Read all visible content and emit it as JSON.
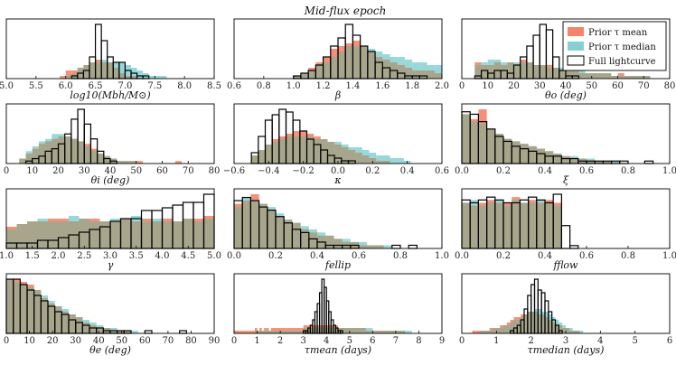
{
  "title": "Mid-flux epoch",
  "colors": {
    "mean": "#f4846a",
    "median": "#86d0d3",
    "overlap": "#a8a48a",
    "full": "#000000"
  },
  "legend": [
    "Prior τ mean",
    "Prior τ median",
    "Full lightcurve"
  ],
  "chart_data": [
    {
      "type": "bar",
      "xlabel": "log10(Mbh/M⊙)",
      "xlim": [
        5.0,
        8.5
      ],
      "ticks": [
        "5.0",
        "5.5",
        "6.0",
        "6.5",
        "7.0",
        "7.5",
        "8.0",
        "8.5"
      ],
      "bins": {
        "start": 5.9,
        "width": 0.1
      },
      "mean": [
        1,
        3,
        3,
        4,
        5,
        6,
        7,
        6,
        6,
        4,
        2,
        1,
        1,
        0,
        0,
        0,
        0,
        0,
        0
      ],
      "median": [
        0,
        1,
        2,
        4,
        5,
        6,
        6,
        7,
        6,
        6,
        6,
        5,
        4,
        3,
        2,
        1,
        1,
        1,
        0
      ],
      "full": [
        0,
        0,
        1,
        2,
        3,
        8,
        20,
        14,
        8,
        6,
        6,
        3,
        2,
        1,
        1,
        0,
        0,
        0,
        0
      ]
    },
    {
      "type": "bar",
      "xlabel": "β",
      "xlim": [
        0.6,
        2.0
      ],
      "ticks": [
        "0.6",
        "0.8",
        "1.0",
        "1.2",
        "1.4",
        "1.6",
        "1.8",
        "2.0"
      ],
      "bins": {
        "start": 1.0,
        "width": 0.05
      },
      "mean": [
        1,
        2,
        4,
        6,
        8,
        11,
        12,
        13,
        14,
        12,
        10,
        8,
        7,
        6,
        5,
        4,
        3,
        3,
        3,
        2
      ],
      "median": [
        1,
        2,
        3,
        5,
        6,
        8,
        10,
        12,
        12,
        12,
        11,
        10,
        9,
        8,
        8,
        7,
        6,
        6,
        5,
        5
      ],
      "full": [
        1,
        2,
        3,
        5,
        8,
        12,
        15,
        20,
        16,
        12,
        10,
        6,
        4,
        3,
        2,
        1,
        1,
        1,
        0,
        0
      ]
    },
    {
      "type": "bar",
      "xlabel": "θo (deg)",
      "xlim": [
        0,
        80
      ],
      "ticks": [
        "0",
        "10",
        "20",
        "30",
        "40",
        "50",
        "60",
        "70",
        "80"
      ],
      "bins": {
        "start": 5,
        "width": 2.5
      },
      "mean": [
        6,
        5,
        5,
        6,
        5,
        6,
        5,
        7,
        6,
        5,
        5,
        5,
        4,
        3,
        3,
        3,
        2,
        2,
        2,
        2,
        2,
        1,
        2,
        1,
        1,
        1,
        1
      ],
      "median": [
        5,
        6,
        7,
        7,
        6,
        6,
        6,
        6,
        6,
        5,
        5,
        4,
        4,
        4,
        3,
        3,
        3,
        2,
        2,
        2,
        2,
        1,
        1,
        1,
        1,
        1,
        1
      ],
      "full": [
        1,
        3,
        2,
        3,
        3,
        2,
        5,
        8,
        12,
        16,
        20,
        18,
        8,
        3,
        1,
        1,
        0,
        0,
        0,
        0,
        0,
        0,
        0,
        0,
        0,
        0,
        0
      ]
    },
    {
      "type": "bar",
      "xlabel": "θi (deg)",
      "xlim": [
        0,
        80
      ],
      "ticks": [
        "0",
        "10",
        "20",
        "30",
        "40",
        "50",
        "60",
        "70",
        "80"
      ],
      "bins": {
        "start": 5,
        "width": 2.5
      },
      "mean": [
        2,
        4,
        6,
        8,
        9,
        10,
        11,
        11,
        10,
        9,
        8,
        6,
        4,
        3,
        2,
        1,
        1,
        1,
        1,
        0,
        0,
        0,
        0,
        0,
        1,
        0,
        0
      ],
      "median": [
        2,
        5,
        7,
        9,
        10,
        12,
        12,
        11,
        10,
        9,
        7,
        5,
        4,
        3,
        2,
        1,
        1,
        1,
        0,
        0,
        0,
        0,
        0,
        0,
        0,
        0,
        0
      ],
      "full": [
        0,
        1,
        2,
        3,
        5,
        6,
        8,
        12,
        18,
        22,
        16,
        10,
        5,
        2,
        1,
        0,
        0,
        0,
        0,
        0,
        0,
        0,
        0,
        0,
        0,
        0,
        0
      ]
    },
    {
      "type": "bar",
      "xlabel": "κ",
      "xlim": [
        -0.6,
        0.6
      ],
      "ticks": [
        "−0.6",
        "−0.4",
        "−0.2",
        "0.0",
        "0.2",
        "0.4",
        "0.6"
      ],
      "bins": {
        "start": -0.5,
        "width": 0.04
      },
      "mean": [
        3,
        5,
        7,
        9,
        10,
        11,
        12,
        12,
        11,
        10,
        9,
        8,
        7,
        6,
        5,
        4,
        3,
        2,
        1,
        1,
        0,
        0,
        0,
        0
      ],
      "median": [
        3,
        5,
        7,
        8,
        9,
        10,
        10,
        10,
        10,
        9,
        9,
        8,
        8,
        7,
        6,
        6,
        5,
        4,
        3,
        3,
        2,
        2,
        1,
        0
      ],
      "full": [
        4,
        10,
        16,
        18,
        20,
        19,
        16,
        12,
        9,
        7,
        5,
        3,
        2,
        1,
        1,
        0,
        0,
        0,
        0,
        0,
        0,
        0,
        0,
        0
      ]
    },
    {
      "type": "bar",
      "xlabel": "ξ",
      "xlim": [
        0.0,
        1.0
      ],
      "ticks": [
        "0.0",
        "0.2",
        "0.4",
        "0.6",
        "0.8",
        "1.0"
      ],
      "bins": {
        "start": 0.0,
        "width": 0.04
      },
      "mean": [
        20,
        18,
        22,
        14,
        12,
        10,
        9,
        8,
        7,
        6,
        5,
        4,
        3,
        2,
        2,
        1,
        1,
        1,
        0,
        0,
        0,
        0,
        0,
        0,
        0
      ],
      "median": [
        20,
        17,
        16,
        14,
        12,
        10,
        9,
        8,
        7,
        6,
        5,
        4,
        3,
        3,
        2,
        2,
        1,
        1,
        1,
        0,
        0,
        0,
        0,
        0,
        0
      ],
      "full": [
        21,
        20,
        17,
        14,
        11,
        9,
        7,
        6,
        5,
        4,
        3,
        3,
        2,
        2,
        1,
        1,
        1,
        1,
        1,
        1,
        0,
        0,
        1,
        0,
        0
      ]
    },
    {
      "type": "bar",
      "xlabel": "γ",
      "xlim": [
        1.0,
        5.0
      ],
      "ticks": [
        "1.0",
        "1.5",
        "2.0",
        "2.5",
        "3.0",
        "3.5",
        "4.0",
        "4.5",
        "5.0"
      ],
      "bins": {
        "start": 1.0,
        "width": 0.2
      },
      "mean": [
        8,
        9,
        10,
        10,
        11,
        11,
        10,
        11,
        11,
        10,
        10,
        11,
        10,
        11,
        10,
        11,
        10,
        11,
        11,
        12
      ],
      "median": [
        7,
        9,
        10,
        11,
        10,
        10,
        12,
        11,
        10,
        10,
        11,
        11,
        12,
        10,
        11,
        10,
        10,
        11,
        10,
        11
      ],
      "full": [
        2,
        2,
        2,
        3,
        3,
        4,
        5,
        6,
        7,
        8,
        10,
        11,
        11,
        14,
        14,
        15,
        16,
        17,
        17,
        20
      ]
    },
    {
      "type": "bar",
      "xlabel": "fellip",
      "xlim": [
        0.0,
        1.0
      ],
      "ticks": [
        "0.0",
        "0.2",
        "0.4",
        "0.6",
        "0.8",
        "1.0"
      ],
      "bins": {
        "start": 0.0,
        "width": 0.04
      },
      "mean": [
        14,
        15,
        17,
        14,
        12,
        10,
        9,
        8,
        6,
        5,
        4,
        4,
        3,
        2,
        2,
        1,
        1,
        1,
        0,
        0,
        0,
        0,
        0,
        0,
        0
      ],
      "median": [
        13,
        16,
        15,
        14,
        13,
        11,
        9,
        8,
        7,
        6,
        5,
        4,
        3,
        3,
        2,
        2,
        1,
        1,
        1,
        0,
        0,
        0,
        0,
        0,
        0
      ],
      "full": [
        15,
        16,
        15,
        13,
        12,
        10,
        8,
        6,
        5,
        3,
        2,
        1,
        1,
        1,
        1,
        0,
        0,
        0,
        0,
        1,
        0,
        1,
        0,
        0,
        0
      ]
    },
    {
      "type": "bar",
      "xlabel": "fflow",
      "xlim": [
        0.0,
        1.0
      ],
      "ticks": [
        "0.0",
        "0.2",
        "0.4",
        "0.6",
        "0.8",
        "1.0"
      ],
      "bins": {
        "start": 0.0,
        "width": 0.04
      },
      "mean": [
        16,
        15,
        16,
        17,
        16,
        16,
        18,
        16,
        17,
        16,
        17,
        16,
        0,
        0,
        0,
        0,
        0,
        0,
        0,
        0,
        0,
        0,
        0,
        0,
        0
      ],
      "median": [
        16,
        17,
        15,
        16,
        17,
        15,
        17,
        16,
        16,
        17,
        16,
        15,
        0,
        0,
        0,
        0,
        0,
        0,
        0,
        0,
        0,
        0,
        0,
        0,
        0
      ],
      "full": [
        17,
        16,
        17,
        18,
        17,
        16,
        16,
        17,
        18,
        17,
        16,
        19,
        8,
        1,
        0,
        0,
        0,
        0,
        0,
        0,
        0,
        0,
        0,
        0,
        0
      ]
    },
    {
      "type": "bar",
      "xlabel": "θe (deg)",
      "xlim": [
        0,
        90
      ],
      "ticks": [
        "0",
        "10",
        "20",
        "30",
        "40",
        "50",
        "60",
        "70",
        "80",
        "90"
      ],
      "bins": {
        "start": 0,
        "width": 3
      },
      "mean": [
        20,
        20,
        19,
        18,
        16,
        13,
        11,
        10,
        8,
        7,
        6,
        4,
        3,
        2,
        2,
        1,
        1,
        1,
        0,
        0,
        0,
        0,
        0,
        0,
        0,
        0,
        0,
        0,
        0
      ],
      "median": [
        20,
        19,
        18,
        17,
        16,
        14,
        12,
        10,
        9,
        7,
        6,
        5,
        4,
        3,
        2,
        2,
        1,
        1,
        1,
        0,
        0,
        0,
        0,
        0,
        0,
        0,
        0,
        0,
        0
      ],
      "full": [
        20,
        20,
        18,
        16,
        14,
        12,
        10,
        8,
        7,
        5,
        4,
        3,
        2,
        2,
        1,
        1,
        1,
        1,
        0,
        0,
        1,
        0,
        0,
        0,
        0,
        1,
        0,
        0,
        0
      ]
    },
    {
      "type": "bar",
      "xlabel": "τmean (days)",
      "xlim": [
        0,
        9
      ],
      "ticks": [
        "0",
        "1",
        "2",
        "3",
        "4",
        "5",
        "6",
        "7",
        "8",
        "9"
      ],
      "bins": {
        "start": 0,
        "width": 0.1
      },
      "mean": [
        1,
        1,
        1,
        1,
        1,
        1,
        1,
        1,
        1,
        2,
        1,
        2,
        1,
        2,
        2,
        1,
        2,
        2,
        2,
        2,
        2,
        2,
        2,
        2,
        2,
        2,
        2,
        2,
        2,
        2,
        3,
        3,
        3,
        3,
        3,
        3,
        3,
        3,
        3,
        3,
        3,
        3,
        3,
        3,
        3,
        2,
        2,
        2,
        2,
        2,
        2,
        2,
        2,
        2,
        2,
        2,
        2,
        1,
        1,
        1,
        1,
        1,
        1,
        1,
        1,
        1,
        1,
        1,
        1,
        1,
        1,
        1,
        1,
        1,
        0,
        0,
        0,
        0,
        0,
        0,
        0,
        0,
        0,
        0,
        0,
        0,
        0,
        0,
        0,
        0
      ],
      "median": [
        0,
        0,
        0,
        0,
        0,
        0,
        0,
        0,
        0,
        1,
        1,
        1,
        1,
        1,
        1,
        1,
        1,
        1,
        1,
        1,
        1,
        1,
        1,
        1,
        1,
        1,
        1,
        1,
        1,
        1,
        2,
        2,
        2,
        2,
        2,
        2,
        2,
        2,
        2,
        2,
        2,
        2,
        2,
        2,
        2,
        2,
        2,
        2,
        2,
        2,
        2,
        2,
        2,
        2,
        2,
        2,
        2,
        2,
        2,
        2,
        1,
        1,
        1,
        1,
        1,
        1,
        1,
        1,
        1,
        1,
        1,
        1,
        1,
        1,
        1,
        1,
        1,
        0,
        0,
        0,
        0,
        0,
        0,
        0,
        0,
        0,
        0,
        0,
        0,
        0
      ],
      "full": [
        0,
        0,
        0,
        0,
        0,
        0,
        0,
        0,
        0,
        0,
        0,
        0,
        0,
        0,
        0,
        0,
        0,
        0,
        0,
        0,
        0,
        0,
        0,
        0,
        0,
        0,
        0,
        0,
        0,
        0,
        1,
        1,
        2,
        3,
        5,
        8,
        11,
        15,
        20,
        17,
        12,
        8,
        5,
        3,
        2,
        1,
        1,
        0,
        0,
        0,
        0,
        0,
        0,
        0,
        0,
        0,
        0,
        0,
        0,
        0,
        0,
        0,
        0,
        0,
        0,
        0,
        0,
        0,
        0,
        0,
        0,
        0,
        0,
        0,
        0,
        0,
        0,
        0,
        0,
        0,
        0,
        0,
        0,
        0,
        0,
        0,
        0,
        0,
        0,
        0
      ]
    },
    {
      "type": "bar",
      "xlabel": "τmedian (days)",
      "xlim": [
        0,
        6
      ],
      "ticks": [
        "0",
        "1",
        "2",
        "3",
        "4",
        "5",
        "6"
      ],
      "bins": {
        "start": 0,
        "width": 0.1
      },
      "mean": [
        0,
        0,
        0,
        1,
        1,
        1,
        1,
        1,
        2,
        2,
        2,
        3,
        3,
        4,
        5,
        6,
        6,
        7,
        7,
        8,
        8,
        8,
        7,
        7,
        6,
        5,
        4,
        3,
        3,
        2,
        2,
        1,
        1,
        1,
        0,
        0,
        0,
        0,
        0,
        0,
        0,
        0,
        0,
        0,
        0,
        0,
        0,
        0,
        0,
        0,
        0,
        0,
        0,
        0,
        0,
        0,
        0,
        0,
        0,
        0
      ],
      "median": [
        0,
        0,
        0,
        0,
        0,
        1,
        1,
        1,
        1,
        2,
        2,
        2,
        3,
        3,
        4,
        5,
        5,
        6,
        7,
        8,
        8,
        9,
        9,
        8,
        8,
        7,
        6,
        5,
        4,
        3,
        2,
        2,
        1,
        1,
        1,
        0,
        0,
        0,
        0,
        0,
        0,
        0,
        0,
        0,
        0,
        0,
        0,
        0,
        0,
        0,
        0,
        0,
        0,
        0,
        0,
        0,
        0,
        0,
        0,
        0
      ],
      "full": [
        0,
        0,
        0,
        0,
        0,
        0,
        0,
        0,
        0,
        0,
        0,
        0,
        0,
        0,
        1,
        2,
        3,
        5,
        9,
        14,
        18,
        20,
        16,
        15,
        12,
        8,
        5,
        3,
        1,
        0,
        0,
        0,
        0,
        0,
        0,
        0,
        0,
        0,
        0,
        0,
        0,
        0,
        0,
        0,
        0,
        0,
        0,
        0,
        0,
        0,
        0,
        0,
        0,
        0,
        0,
        0,
        0,
        0,
        0,
        0
      ]
    }
  ]
}
